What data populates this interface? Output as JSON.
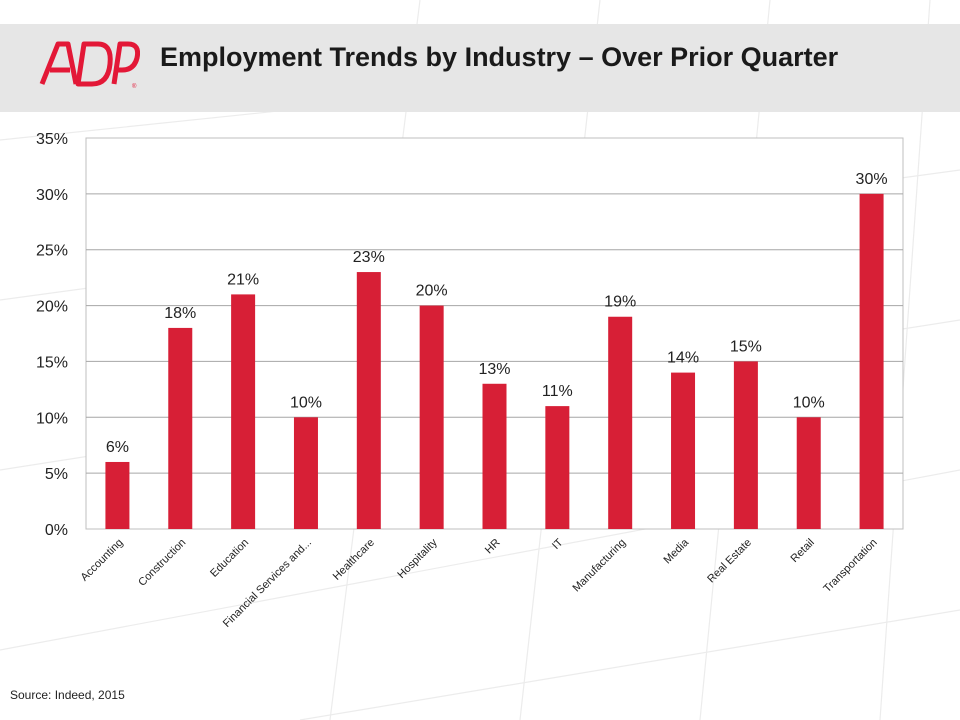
{
  "header": {
    "title": "Employment Trends by Industry – Over Prior Quarter",
    "logo_text": "ADP",
    "brand_color": "#e31837"
  },
  "footer": {
    "source": "Source: Indeed, 2015"
  },
  "chart_data": {
    "type": "bar",
    "categories": [
      "Accounting",
      "Construction",
      "Education",
      "Financial Services and...",
      "Healthcare",
      "Hospitality",
      "HR",
      "IT",
      "Manufacturing",
      "Media",
      "Real Estate",
      "Retail",
      "Transportation"
    ],
    "values": [
      6,
      18,
      21,
      10,
      23,
      20,
      13,
      11,
      19,
      14,
      15,
      10,
      30
    ],
    "data_labels": [
      "6%",
      "18%",
      "21%",
      "10%",
      "23%",
      "20%",
      "13%",
      "11%",
      "19%",
      "14%",
      "15%",
      "10%",
      "30%"
    ],
    "y_ticks": [
      0,
      5,
      10,
      15,
      20,
      25,
      30,
      35
    ],
    "y_tick_labels": [
      "0%",
      "5%",
      "10%",
      "15%",
      "20%",
      "25%",
      "30%",
      "35%"
    ],
    "ylim": [
      0,
      35
    ],
    "grid": true,
    "legend": false,
    "bar_color": "#d71f36",
    "title": "Employment Trends by Industry – Over Prior Quarter",
    "xlabel": "",
    "ylabel": ""
  }
}
